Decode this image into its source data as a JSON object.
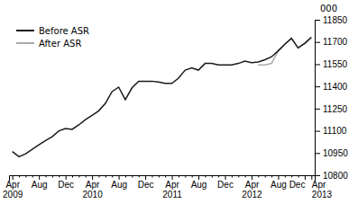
{
  "chart_data": {
    "type": "line",
    "y_label": "000",
    "categories": [
      "Apr\n2009",
      null,
      null,
      null,
      "Aug",
      null,
      null,
      null,
      "Dec",
      null,
      null,
      null,
      "Apr\n2010",
      null,
      null,
      null,
      "Aug",
      null,
      null,
      null,
      "Dec",
      null,
      null,
      null,
      "Apr\n2011",
      null,
      null,
      null,
      "Aug",
      null,
      null,
      null,
      "Dec",
      null,
      null,
      null,
      "Apr\n2012",
      null,
      null,
      null,
      "Aug",
      null,
      null,
      null,
      "Dec",
      "Apr\n2013"
    ],
    "series": [
      {
        "name": "Before ASR",
        "color": "#1a1a1a",
        "values": [
          10960,
          10925,
          10945,
          10975,
          11005,
          11035,
          11060,
          11100,
          11115,
          11110,
          11140,
          11175,
          11205,
          11235,
          11285,
          11365,
          11395,
          11310,
          11390,
          11435,
          11435,
          11435,
          11430,
          11420,
          11420,
          11455,
          11510,
          11525,
          11510,
          11555,
          11555,
          11545,
          11545,
          11545,
          11555,
          11570,
          11560,
          11565,
          11580,
          11600,
          11640,
          11685,
          11725,
          11660,
          11690,
          11730
        ]
      },
      {
        "name": "After ASR",
        "color": "#aaaaaa",
        "values": [
          null,
          null,
          null,
          null,
          null,
          null,
          null,
          null,
          null,
          null,
          null,
          null,
          null,
          null,
          null,
          null,
          null,
          null,
          null,
          null,
          null,
          null,
          null,
          null,
          null,
          null,
          null,
          null,
          null,
          null,
          null,
          null,
          null,
          null,
          null,
          null,
          null,
          11545,
          11545,
          11555,
          11640,
          11685,
          11725,
          11660,
          11695,
          11735
        ]
      }
    ],
    "ylim": [
      10800,
      11850
    ],
    "yticks": [
      10800,
      10950,
      11100,
      11250,
      11400,
      11550,
      11700,
      11850
    ],
    "grid": false,
    "legend": "upper left"
  }
}
